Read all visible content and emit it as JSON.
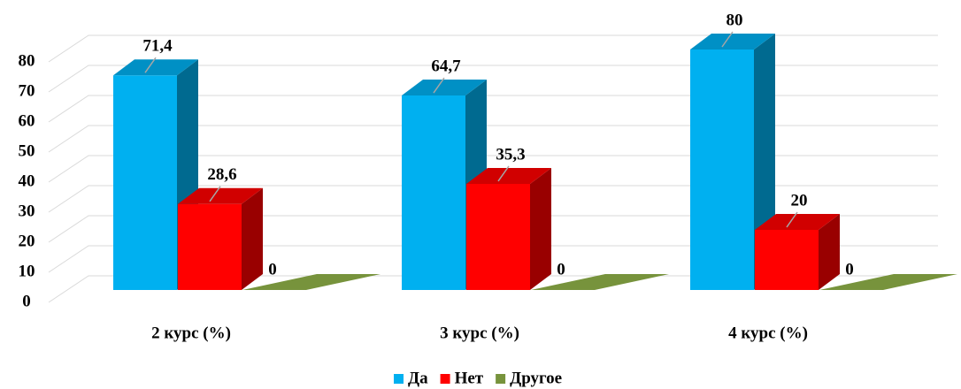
{
  "chart_data": {
    "type": "bar3d",
    "categories": [
      "2 курс (%)",
      "3 курс (%)",
      "4 курс (%)"
    ],
    "series": [
      {
        "name": "Да",
        "color": "#00b0f0",
        "values": [
          71.4,
          64.7,
          80
        ],
        "value_labels": [
          "71,4",
          "64,7",
          "80"
        ]
      },
      {
        "name": "Нет",
        "color": "#ff0000",
        "values": [
          28.6,
          35.3,
          20
        ],
        "value_labels": [
          "28,6",
          "35,3",
          "20"
        ]
      },
      {
        "name": "Другое",
        "color": "#77933c",
        "values": [
          0,
          0,
          0
        ]
      }
    ],
    "ylim": [
      0,
      80
    ],
    "yticks": [
      0,
      10,
      20,
      30,
      40,
      50,
      60,
      70,
      80
    ],
    "grid": true,
    "legend": "bottom"
  }
}
